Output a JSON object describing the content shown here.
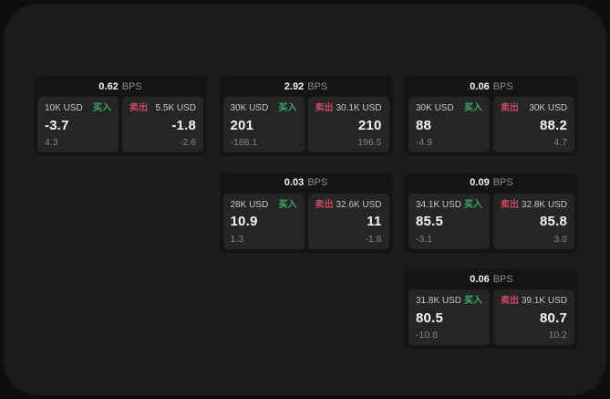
{
  "labels": {
    "bps_unit": "BPS",
    "buy": "买入",
    "sell": "卖出"
  },
  "colors": {
    "background": "#0e0e0f",
    "window": "#1b1b1d",
    "card": "#141416",
    "tile": "#252528",
    "buy_green": "#3cab66",
    "sell_red": "#c74b5e"
  },
  "cards": [
    {
      "bps": "0.62",
      "buy": {
        "amount": "10K USD",
        "price": "-3.7",
        "sub": "4.3"
      },
      "sell": {
        "amount": "5.5K USD",
        "price": "-1.8",
        "sub": "-2.6"
      }
    },
    {
      "bps": "2.92",
      "buy": {
        "amount": "30K USD",
        "price": "201",
        "sub": "-188.1"
      },
      "sell": {
        "amount": "30.1K USD",
        "price": "210",
        "sub": "196.5"
      }
    },
    {
      "bps": "0.06",
      "buy": {
        "amount": "30K USD",
        "price": "88",
        "sub": "-4.9"
      },
      "sell": {
        "amount": "30K USD",
        "price": "88.2",
        "sub": "4.7"
      }
    },
    {
      "bps": "0.03",
      "buy": {
        "amount": "28K USD",
        "price": "10.9",
        "sub": "1.3"
      },
      "sell": {
        "amount": "32.6K USD",
        "price": "11",
        "sub": "-1.8"
      }
    },
    {
      "bps": "0.09",
      "buy": {
        "amount": "34.1K USD",
        "price": "85.5",
        "sub": "-3.1"
      },
      "sell": {
        "amount": "32.8K USD",
        "price": "85.8",
        "sub": "3.0"
      }
    },
    {
      "bps": "0.06",
      "buy": {
        "amount": "31.8K USD",
        "price": "80.5",
        "sub": "-10.8"
      },
      "sell": {
        "amount": "39.1K USD",
        "price": "80.7",
        "sub": "10.2"
      }
    }
  ]
}
